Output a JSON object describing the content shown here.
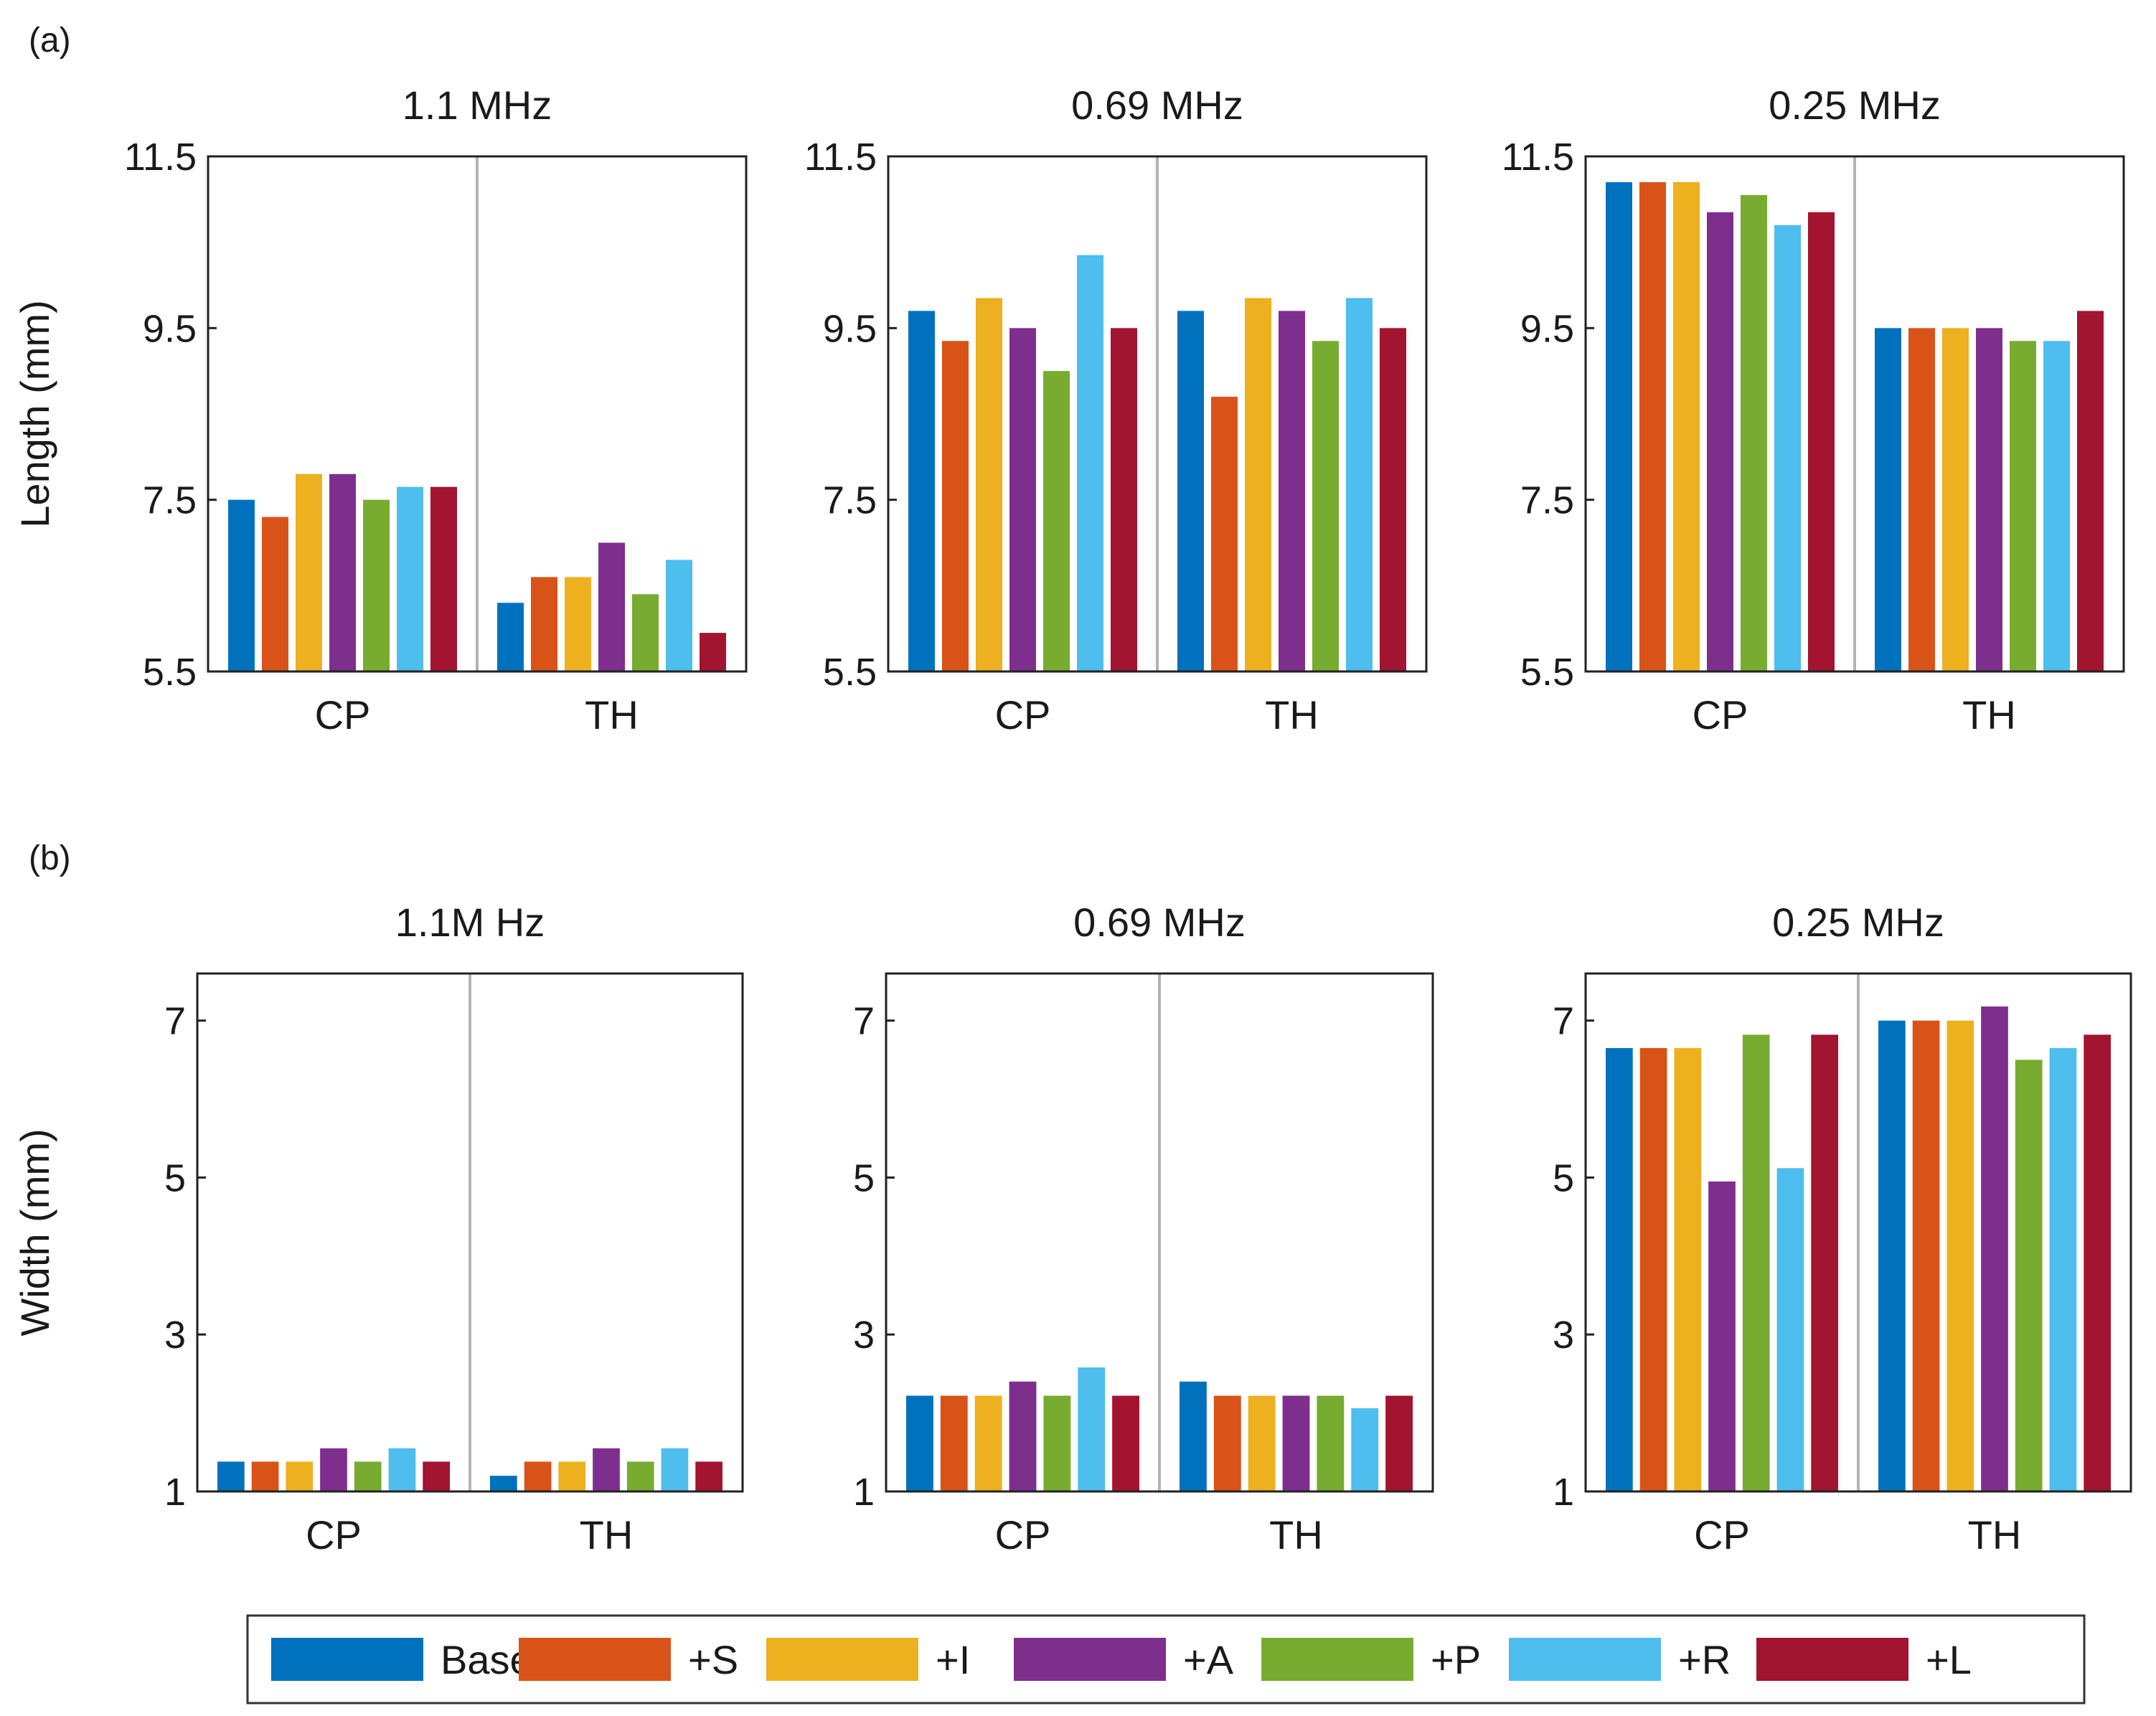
{
  "figure": {
    "panel_a_label": "(a)",
    "panel_b_label": "(b)"
  },
  "legend": {
    "entries": [
      {
        "label": "Base",
        "color": "#0072BD"
      },
      {
        "label": "+S",
        "color": "#D95319"
      },
      {
        "label": "+I",
        "color": "#EDB120"
      },
      {
        "label": "+A",
        "color": "#7E2F8E"
      },
      {
        "label": "+P",
        "color": "#77AC30"
      },
      {
        "label": "+R",
        "color": "#4DBEEE"
      },
      {
        "label": "+L",
        "color": "#A2142F"
      }
    ]
  },
  "chart_data": [
    {
      "type": "bar",
      "panel": "a",
      "title": "1.1 MHz",
      "ylabel": "Length (mm)",
      "ylim": [
        5.5,
        11.5
      ],
      "yticks": [
        5.5,
        7.5,
        9.5,
        11.5
      ],
      "ytick_labels": [
        "5.5",
        "7.5",
        "9.5",
        "11.5"
      ],
      "categories": [
        "CP",
        "TH"
      ],
      "series": [
        {
          "name": "Base",
          "values": [
            7.5,
            6.3
          ]
        },
        {
          "name": "+S",
          "values": [
            7.3,
            6.6
          ]
        },
        {
          "name": "+I",
          "values": [
            7.8,
            6.6
          ]
        },
        {
          "name": "+A",
          "values": [
            7.8,
            7.0
          ]
        },
        {
          "name": "+P",
          "values": [
            7.5,
            6.4
          ]
        },
        {
          "name": "+R",
          "values": [
            7.65,
            6.8
          ]
        },
        {
          "name": "+L",
          "values": [
            7.65,
            5.95
          ]
        }
      ]
    },
    {
      "type": "bar",
      "panel": "a",
      "title": "0.69 MHz",
      "ylabel": "",
      "ylim": [
        5.5,
        11.5
      ],
      "yticks": [
        5.5,
        7.5,
        9.5,
        11.5
      ],
      "ytick_labels": [
        "5.5",
        "7.5",
        "9.5",
        "11.5"
      ],
      "categories": [
        "CP",
        "TH"
      ],
      "series": [
        {
          "name": "Base",
          "values": [
            9.7,
            9.7
          ]
        },
        {
          "name": "+S",
          "values": [
            9.35,
            8.7
          ]
        },
        {
          "name": "+I",
          "values": [
            9.85,
            9.85
          ]
        },
        {
          "name": "+A",
          "values": [
            9.5,
            9.7
          ]
        },
        {
          "name": "+P",
          "values": [
            9.0,
            9.35
          ]
        },
        {
          "name": "+R",
          "values": [
            10.35,
            9.85
          ]
        },
        {
          "name": "+L",
          "values": [
            9.5,
            9.5
          ]
        }
      ]
    },
    {
      "type": "bar",
      "panel": "a",
      "title": "0.25 MHz",
      "ylabel": "",
      "ylim": [
        5.5,
        11.5
      ],
      "yticks": [
        5.5,
        7.5,
        9.5,
        11.5
      ],
      "ytick_labels": [
        "5.5",
        "7.5",
        "9.5",
        "11.5"
      ],
      "categories": [
        "CP",
        "TH"
      ],
      "series": [
        {
          "name": "Base",
          "values": [
            11.2,
            9.5
          ]
        },
        {
          "name": "+S",
          "values": [
            11.2,
            9.5
          ]
        },
        {
          "name": "+I",
          "values": [
            11.2,
            9.5
          ]
        },
        {
          "name": "+A",
          "values": [
            10.85,
            9.5
          ]
        },
        {
          "name": "+P",
          "values": [
            11.05,
            9.35
          ]
        },
        {
          "name": "+R",
          "values": [
            10.7,
            9.35
          ]
        },
        {
          "name": "+L",
          "values": [
            10.85,
            9.7
          ]
        }
      ]
    },
    {
      "type": "bar",
      "panel": "b",
      "title": "1.1M Hz",
      "ylabel": "Width (mm)",
      "ylim": [
        1,
        7.6
      ],
      "yticks": [
        1,
        3,
        5,
        7
      ],
      "ytick_labels": [
        "1",
        "3",
        "5",
        "7"
      ],
      "categories": [
        "CP",
        "TH"
      ],
      "series": [
        {
          "name": "Base",
          "values": [
            1.38,
            1.2
          ]
        },
        {
          "name": "+S",
          "values": [
            1.38,
            1.38
          ]
        },
        {
          "name": "+I",
          "values": [
            1.38,
            1.38
          ]
        },
        {
          "name": "+A",
          "values": [
            1.55,
            1.55
          ]
        },
        {
          "name": "+P",
          "values": [
            1.38,
            1.38
          ]
        },
        {
          "name": "+R",
          "values": [
            1.55,
            1.55
          ]
        },
        {
          "name": "+L",
          "values": [
            1.38,
            1.38
          ]
        }
      ]
    },
    {
      "type": "bar",
      "panel": "b",
      "title": "0.69 MHz",
      "ylabel": "",
      "ylim": [
        1,
        7.6
      ],
      "yticks": [
        1,
        3,
        5,
        7
      ],
      "ytick_labels": [
        "1",
        "3",
        "5",
        "7"
      ],
      "categories": [
        "CP",
        "TH"
      ],
      "series": [
        {
          "name": "Base",
          "values": [
            2.22,
            2.4
          ]
        },
        {
          "name": "+S",
          "values": [
            2.22,
            2.22
          ]
        },
        {
          "name": "+I",
          "values": [
            2.22,
            2.22
          ]
        },
        {
          "name": "+A",
          "values": [
            2.4,
            2.22
          ]
        },
        {
          "name": "+P",
          "values": [
            2.22,
            2.22
          ]
        },
        {
          "name": "+R",
          "values": [
            2.58,
            2.06
          ]
        },
        {
          "name": "+L",
          "values": [
            2.22,
            2.22
          ]
        }
      ]
    },
    {
      "type": "bar",
      "panel": "b",
      "title": "0.25 MHz",
      "ylabel": "",
      "ylim": [
        1,
        7.6
      ],
      "yticks": [
        1,
        3,
        5,
        7
      ],
      "ytick_labels": [
        "1",
        "3",
        "5",
        "7"
      ],
      "categories": [
        "CP",
        "TH"
      ],
      "series": [
        {
          "name": "Base",
          "values": [
            6.65,
            7.0
          ]
        },
        {
          "name": "+S",
          "values": [
            6.65,
            7.0
          ]
        },
        {
          "name": "+I",
          "values": [
            6.65,
            7.0
          ]
        },
        {
          "name": "+A",
          "values": [
            4.95,
            7.18
          ]
        },
        {
          "name": "+P",
          "values": [
            6.82,
            6.5
          ]
        },
        {
          "name": "+R",
          "values": [
            5.12,
            6.65
          ]
        },
        {
          "name": "+L",
          "values": [
            6.82,
            6.82
          ]
        }
      ]
    }
  ]
}
